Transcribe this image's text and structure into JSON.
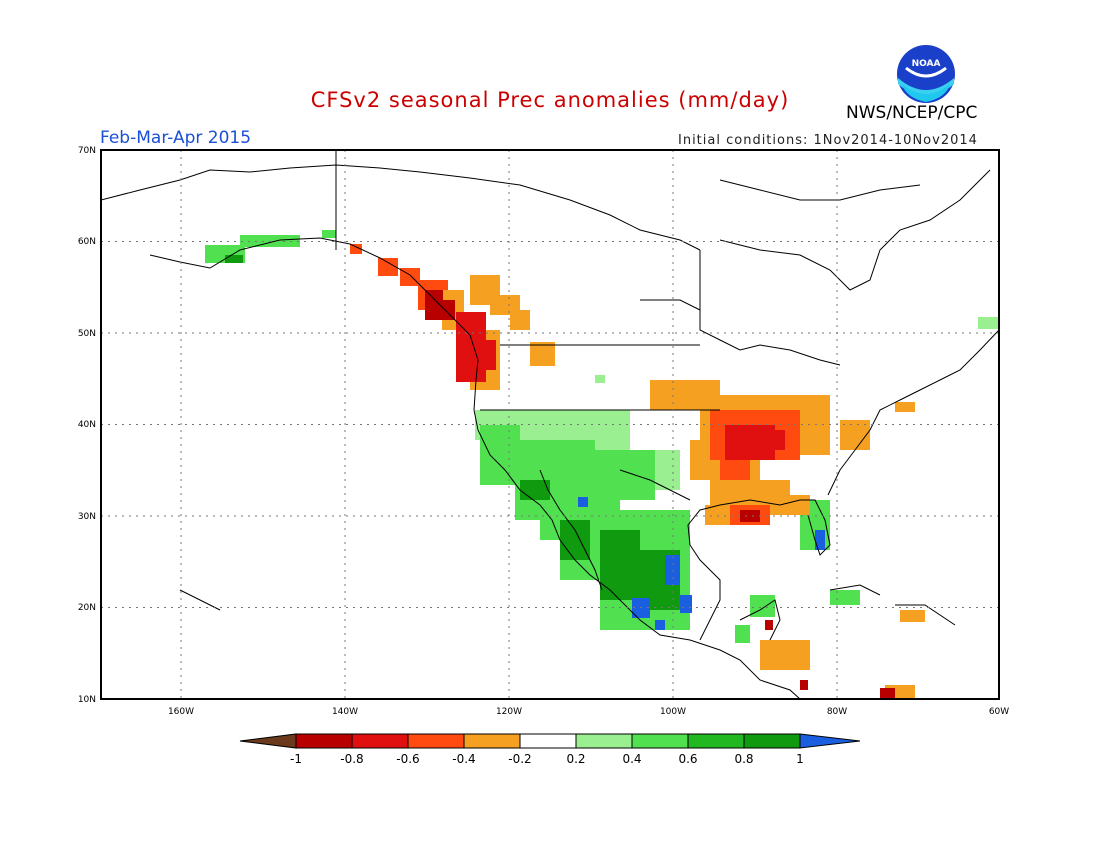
{
  "header": {
    "title": "CFSv2 seasonal Prec anomalies (mm/day)",
    "period": "Feb-Mar-Apr 2015",
    "initial_conditions": "Initial conditions: 1Nov2014-10Nov2014",
    "agency": "NWS/NCEP/CPC",
    "logo_text": "NOAA"
  },
  "map": {
    "lat_labels": [
      "70N",
      "60N",
      "50N",
      "40N",
      "30N",
      "20N",
      "10N"
    ],
    "lon_labels": [
      "160W",
      "140W",
      "120W",
      "100W",
      "80W",
      "60W"
    ],
    "lat_range": [
      10,
      70
    ],
    "lon_range": [
      -172,
      -60
    ],
    "grid": "dotted"
  },
  "colorbar": {
    "ticks": [
      "-1",
      "-0.8",
      "-0.6",
      "-0.4",
      "-0.2",
      "0.2",
      "0.4",
      "0.6",
      "0.8",
      "1"
    ],
    "colors": [
      "#6b3a1c",
      "#b80000",
      "#e01010",
      "#ff4a10",
      "#f5a020",
      "#ffffff",
      "#9af090",
      "#50e050",
      "#22b822",
      "#109a10",
      "#1a5fe0"
    ]
  },
  "regions": [
    {
      "name": "alaska-south-coast",
      "color": "#50e050"
    },
    {
      "name": "pacific-northwest",
      "color": "#b80000"
    },
    {
      "name": "southwest-mexico",
      "color": "#22b822"
    },
    {
      "name": "mississippi-valley",
      "color": "#e01010"
    },
    {
      "name": "ohio-valley",
      "color": "#f5a020"
    },
    {
      "name": "florida",
      "color": "#50e050"
    },
    {
      "name": "central-america",
      "color": "#f5a020"
    }
  ]
}
